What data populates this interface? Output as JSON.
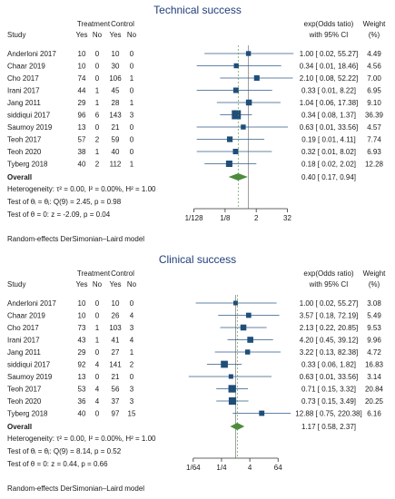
{
  "chart_data": [
    {
      "type": "forest",
      "title": "Technical success",
      "header": {
        "study": "Study",
        "group1": "Treatment",
        "group2": "Control",
        "yes1": "Yes",
        "no1": "No",
        "yes2": "Yes",
        "no2": "No",
        "effect_line1": "exp(Odds tatio)",
        "effect_line2": "with 95% CI",
        "weight_line1": "Weight",
        "weight_line2": "(%)"
      },
      "studies": [
        {
          "name": "Anderloni 2017",
          "yes1": "10",
          "no1": "0",
          "yes2": "10",
          "no2": "0",
          "or": 1.0,
          "lo": 0.02,
          "hi": 55.27,
          "ci": "1.00 [ 0.02,  55.27]",
          "weight": "4.49"
        },
        {
          "name": "Chaar 2019",
          "yes1": "10",
          "no1": "0",
          "yes2": "30",
          "no2": "0",
          "or": 0.34,
          "lo": 0.01,
          "hi": 18.46,
          "ci": "0.34 [ 0.01,  18.46]",
          "weight": "4.56"
        },
        {
          "name": "Cho 2017",
          "yes1": "74",
          "no1": "0",
          "yes2": "106",
          "no2": "1",
          "or": 2.1,
          "lo": 0.08,
          "hi": 52.22,
          "ci": "2.10 [ 0.08,  52.22]",
          "weight": "7.00"
        },
        {
          "name": "Irani 2017",
          "yes1": "44",
          "no1": "1",
          "yes2": "45",
          "no2": "0",
          "or": 0.33,
          "lo": 0.01,
          "hi": 8.22,
          "ci": "0.33 [ 0.01,    8.22]",
          "weight": "6.95"
        },
        {
          "name": "Jang 2011",
          "yes1": "29",
          "no1": "1",
          "yes2": "28",
          "no2": "1",
          "or": 1.04,
          "lo": 0.06,
          "hi": 17.38,
          "ci": "1.04 [ 0.06,  17.38]",
          "weight": "9.10"
        },
        {
          "name": "siddiqui 2017",
          "yes1": "96",
          "no1": "6",
          "yes2": "143",
          "no2": "3",
          "or": 0.34,
          "lo": 0.08,
          "hi": 1.37,
          "ci": "0.34 [ 0.08,    1.37]",
          "weight": "36.39"
        },
        {
          "name": "Saumoy 2019",
          "yes1": "13",
          "no1": "0",
          "yes2": "21",
          "no2": "0",
          "or": 0.63,
          "lo": 0.01,
          "hi": 33.56,
          "ci": "0.63 [ 0.01,  33.56]",
          "weight": "4.57"
        },
        {
          "name": "Teoh 2017",
          "yes1": "57",
          "no1": "2",
          "yes2": "59",
          "no2": "0",
          "or": 0.19,
          "lo": 0.01,
          "hi": 4.11,
          "ci": "0.19 [ 0.01,    4.11]",
          "weight": "7.74"
        },
        {
          "name": "Teoh 2020",
          "yes1": "38",
          "no1": "1",
          "yes2": "40",
          "no2": "0",
          "or": 0.32,
          "lo": 0.01,
          "hi": 8.02,
          "ci": "0.32 [ 0.01,    8.02]",
          "weight": "6.93"
        },
        {
          "name": "Tyberg 2018",
          "yes1": "40",
          "no1": "2",
          "yes2": "112",
          "no2": "1",
          "or": 0.18,
          "lo": 0.02,
          "hi": 2.02,
          "ci": "0.18 [ 0.02,    2.02]",
          "weight": "12.28"
        }
      ],
      "overall": {
        "label": "Overall",
        "or": 0.4,
        "lo": 0.17,
        "hi": 0.94,
        "ci": "0.40 [ 0.17,    0.94]"
      },
      "heterogeneity": "Heterogeneity: τ² = 0.00, I² = 0.00%, H² = 1.00",
      "test_q": "Test of θᵢ = θⱼ: Q(9) = 2.45, p = 0.98",
      "test_z": "Test of θ = 0: z = -2.09, p = 0.04",
      "axis": {
        "scale": "log",
        "xlim": [
          0.0039,
          50
        ],
        "ticks": [
          {
            "v": 0.0078125,
            "label": "1/128"
          },
          {
            "v": 0.125,
            "label": "1/8"
          },
          {
            "v": 2,
            "label": "2"
          },
          {
            "v": 32,
            "label": "32"
          }
        ]
      },
      "footer": "Random-effects DerSimonian–Laird model"
    },
    {
      "type": "forest",
      "title": "Clinical success",
      "header": {
        "study": "Study",
        "group1": "Treatment",
        "group2": "Control",
        "yes1": "Yes",
        "no1": "No",
        "yes2": "Yes",
        "no2": "No",
        "effect_line1": "exp(Odds ratio)",
        "effect_line2": "with 95% CI",
        "weight_line1": "Weight",
        "weight_line2": "(%)"
      },
      "studies": [
        {
          "name": "Anderloni 2017",
          "yes1": "10",
          "no1": "0",
          "yes2": "10",
          "no2": "0",
          "or": 1.0,
          "lo": 0.02,
          "hi": 55.27,
          "ci": "1.00 [ 0.02,  55.27]",
          "weight": "3.08"
        },
        {
          "name": "Chaar 2019",
          "yes1": "10",
          "no1": "0",
          "yes2": "26",
          "no2": "4",
          "or": 3.57,
          "lo": 0.18,
          "hi": 72.19,
          "ci": "3.57 [ 0.18,  72.19]",
          "weight": "5.49"
        },
        {
          "name": "Cho 2017",
          "yes1": "73",
          "no1": "1",
          "yes2": "103",
          "no2": "3",
          "or": 2.13,
          "lo": 0.22,
          "hi": 20.85,
          "ci": "2.13 [ 0.22,  20.85]",
          "weight": "9.53"
        },
        {
          "name": "Irani 2017",
          "yes1": "43",
          "no1": "1",
          "yes2": "41",
          "no2": "4",
          "or": 4.2,
          "lo": 0.45,
          "hi": 39.12,
          "ci": "4.20 [ 0.45,  39.12]",
          "weight": "9.96"
        },
        {
          "name": "Jang 2011",
          "yes1": "29",
          "no1": "0",
          "yes2": "27",
          "no2": "1",
          "or": 3.22,
          "lo": 0.13,
          "hi": 82.38,
          "ci": "3.22 [ 0.13,  82.38]",
          "weight": "4.72"
        },
        {
          "name": "siddiqui 2017",
          "yes1": "92",
          "no1": "4",
          "yes2": "141",
          "no2": "2",
          "or": 0.33,
          "lo": 0.06,
          "hi": 1.82,
          "ci": "0.33 [ 0.06,    1.82]",
          "weight": "16.83"
        },
        {
          "name": "Saumoy 2019",
          "yes1": "13",
          "no1": "0",
          "yes2": "21",
          "no2": "0",
          "or": 0.63,
          "lo": 0.01,
          "hi": 33.56,
          "ci": "0.63 [ 0.01,  33.56]",
          "weight": "3.14"
        },
        {
          "name": "Teoh 2017",
          "yes1": "53",
          "no1": "4",
          "yes2": "56",
          "no2": "3",
          "or": 0.71,
          "lo": 0.15,
          "hi": 3.32,
          "ci": "0.71 [ 0.15,    3.32]",
          "weight": "20.84"
        },
        {
          "name": "Teoh 2020",
          "yes1": "36",
          "no1": "4",
          "yes2": "37",
          "no2": "3",
          "or": 0.73,
          "lo": 0.15,
          "hi": 3.49,
          "ci": "0.73 [ 0.15,    3.49]",
          "weight": "20.25"
        },
        {
          "name": "Tyberg 2018",
          "yes1": "40",
          "no1": "0",
          "yes2": "97",
          "no2": "15",
          "or": 12.88,
          "lo": 0.75,
          "hi": 220.38,
          "ci": "12.88 [ 0.75, 220.38]",
          "weight": "6.16"
        }
      ],
      "overall": {
        "label": "Overall",
        "or": 1.17,
        "lo": 0.58,
        "hi": 2.37,
        "ci": "1.17 [ 0.58,    2.37]"
      },
      "heterogeneity": "Heterogeneity: τ² = 0.00, I² = 0.00%, H² = 1.00",
      "test_q": "Test of θᵢ = θⱼ: Q(9) = 8.14, p = 0.52",
      "test_z": "Test of θ = 0: z = 0.44, p = 0.66",
      "axis": {
        "scale": "log",
        "xlim": [
          0.0078,
          260
        ],
        "ticks": [
          {
            "v": 0.015625,
            "label": "1/64"
          },
          {
            "v": 0.25,
            "label": "1/4"
          },
          {
            "v": 4,
            "label": "4"
          },
          {
            "v": 64,
            "label": "64"
          }
        ]
      },
      "footer": "Random-effects DerSimonian–Laird model"
    }
  ],
  "colors": {
    "marker": "#1f4e79",
    "ci_line": "#2f5a8a",
    "diamond": "#4c8c3c",
    "title": "#1f3d7a",
    "text": "#1a1a1a",
    "axis": "#333333",
    "ref_line": "#777777"
  }
}
